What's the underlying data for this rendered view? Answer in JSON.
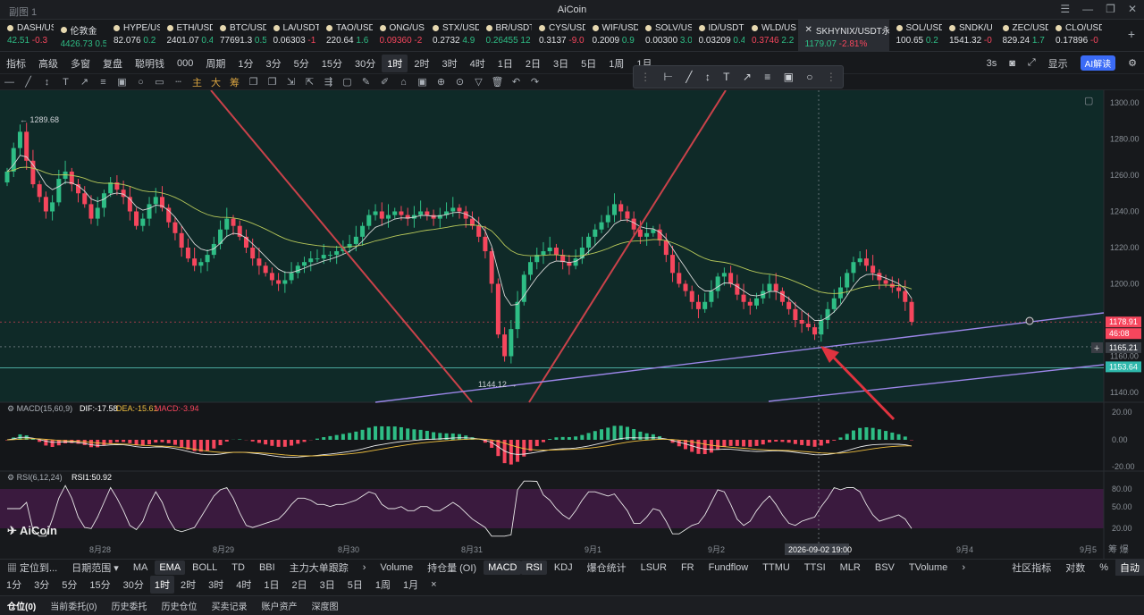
{
  "window": {
    "left_title": "副图 1",
    "title": "AiCoin",
    "controls": [
      "☰",
      "—",
      "❐",
      "✕"
    ]
  },
  "ticker": [
    {
      "sym": "DASH/US",
      "price": "42.51",
      "chg": "-0.3",
      "dir": "up"
    },
    {
      "sym": "伦敦金",
      "price": "4426.73",
      "chg": "0.5",
      "dir": "up"
    },
    {
      "sym": "HYPE/US",
      "price": "82.076",
      "chg": "0.2",
      "dir": "wh"
    },
    {
      "sym": "ETH/USD",
      "price": "2401.07",
      "chg": "0.4",
      "dir": "wh"
    },
    {
      "sym": "BTC/USD",
      "price": "77691.3",
      "chg": "0.5",
      "dir": "wh"
    },
    {
      "sym": "LA/USDT",
      "price": "0.06303",
      "chg": "-1",
      "dir": "wh"
    },
    {
      "sym": "TAO/USD",
      "price": "220.64",
      "chg": "1.6",
      "dir": "wh"
    },
    {
      "sym": "ONG/US",
      "price": "0.09360",
      "chg": "-2",
      "dir": "dn"
    },
    {
      "sym": "STX/USD",
      "price": "0.2732",
      "chg": "4.9",
      "dir": "wh"
    },
    {
      "sym": "BR/USDT",
      "price": "0.26455",
      "chg": "12",
      "dir": "up"
    },
    {
      "sym": "CYS/USD",
      "price": "0.3137",
      "chg": "-9.0",
      "dir": "wh"
    },
    {
      "sym": "WIF/USD",
      "price": "0.2009",
      "chg": "0.9",
      "dir": "wh"
    },
    {
      "sym": "SOLV/US",
      "price": "0.00300",
      "chg": "3.0",
      "dir": "wh"
    },
    {
      "sym": "ID/USDT",
      "price": "0.03209",
      "chg": "0.4",
      "dir": "wh"
    },
    {
      "sym": "WLD/US",
      "price": "0.3746",
      "chg": "2.2",
      "dir": "dn"
    },
    {
      "sym": "SKHYNIX/USDT永",
      "price": "1179.07",
      "chg": "-2.81%",
      "dir": "up",
      "active": true
    },
    {
      "sym": "SOL/USD",
      "price": "100.65",
      "chg": "0.2",
      "dir": "wh"
    },
    {
      "sym": "SNDK/U",
      "price": "1541.32",
      "chg": "-0",
      "dir": "wh"
    },
    {
      "sym": "ZEC/USD",
      "price": "829.24",
      "chg": "1.7",
      "dir": "wh"
    },
    {
      "sym": "CLO/USD",
      "price": "0.17896",
      "chg": "-0",
      "dir": "wh"
    }
  ],
  "toolbar1": {
    "items": [
      "指标",
      "高级",
      "多窗",
      "复盘",
      "聪明钱",
      "000",
      "周期",
      "1分",
      "3分",
      "5分",
      "15分",
      "30分",
      "1时",
      "2时",
      "3时",
      "4时",
      "1日",
      "2日",
      "3日",
      "5日",
      "1周",
      "1月"
    ],
    "selected": "1时",
    "right": [
      "3s",
      "显示",
      "AI解读"
    ]
  },
  "toolbar2_icons": [
    "—",
    "╱",
    "↕",
    "T",
    "↗",
    "≡",
    "▣",
    "○",
    "▭",
    "┄",
    "主",
    "大",
    "筹",
    "❐",
    "❐",
    "⇲",
    "⇱",
    "⇶",
    "▢",
    "✎",
    "✐",
    "⌂",
    "▣",
    "⊕",
    "⊙",
    "▽",
    "🗑",
    "↶",
    "↷"
  ],
  "floatbar_icons": [
    "⊢",
    "╱",
    "↕",
    "T",
    "↗",
    "≡",
    "▣",
    "○"
  ],
  "price_axis": [
    "1300.00",
    "1280.00",
    "1260.00",
    "1240.00",
    "1220.00",
    "1200.00",
    "1180.00",
    "1160.00",
    "1140.00"
  ],
  "price_tags": {
    "last": "1178.91",
    "countdown": "46:08",
    "cross": "1165.21",
    "line": "1153.64"
  },
  "labels": {
    "high": "1289.68",
    "low": "1144.12"
  },
  "macd": {
    "title": "MACD(15,60,9)",
    "dif": "DIF:-17.58",
    "dea": "DEA:-15.61",
    "macd": "MACD:-3.94",
    "axis": [
      "20.00",
      "0.00",
      "-20.00"
    ]
  },
  "rsi": {
    "title": "RSI(6,12,24)",
    "rsi1": "RSI1:50.92",
    "axis": [
      "80.00",
      "50.00",
      "20.00"
    ]
  },
  "x_axis": [
    "8月28",
    "8月29",
    "8月30",
    "8月31",
    "9月1",
    "9月2",
    "9月3",
    "9月4",
    "9月5"
  ],
  "cross_time": "2026-09-02 19:00",
  "watermark": "AiCoin",
  "bottom1": {
    "left": [
      "定位到...",
      "日期范围"
    ],
    "main_inds": [
      "MA",
      "EMA",
      "BOLL",
      "TD",
      "BBI",
      "主力大单跟踪"
    ],
    "main_sel": "EMA",
    "sub_inds": [
      "Volume",
      "持仓量 (OI)",
      "MACD",
      "RSI",
      "KDJ",
      "爆仓统计",
      "LSUR",
      "FR",
      "Fundflow",
      "TTMU",
      "TTSI",
      "MLR",
      "BSV",
      "TVolume"
    ],
    "sub_sel": [
      "MACD",
      "RSI"
    ],
    "right": [
      "社区指标",
      "对数",
      "%",
      "自动"
    ]
  },
  "bottom2": {
    "items": [
      "1分",
      "3分",
      "5分",
      "15分",
      "30分",
      "1时",
      "2时",
      "3时",
      "4时",
      "1日",
      "2日",
      "3日",
      "5日",
      "1周",
      "1月",
      "×"
    ],
    "selected": "1时"
  },
  "bottom3": {
    "items": [
      "仓位(0)",
      "当前委托(0)",
      "历史委托",
      "历史仓位",
      "买卖记录",
      "账户资产",
      "深度图"
    ]
  },
  "colors": {
    "up": "#2ebd85",
    "down": "#f6465d",
    "panel_bg": "#0f2a28",
    "rsi_bg": "#3a1a3e",
    "line_purple": "#9b86e8",
    "line_red": "#c9424a"
  }
}
